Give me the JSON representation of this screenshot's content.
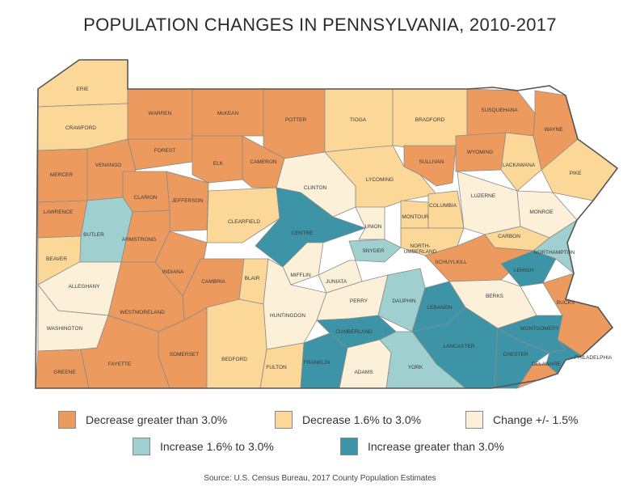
{
  "title": "POPULATION CHANGES IN PENNSYLVANIA, 2010-2017",
  "source": "Source: U.S. Census Bureau, 2017 County Population Estimates",
  "colors": {
    "decrease_gt3": "#ec9a5e",
    "decrease_16_30": "#fbd898",
    "change_15": "#fcf0d8",
    "increase_16_30": "#9fcfcf",
    "increase_gt3": "#3d94a7",
    "border": "#8a8a8a",
    "state_outline": "#555555"
  },
  "legend": [
    {
      "key": "decrease_gt3",
      "label": "Decrease greater than 3.0%"
    },
    {
      "key": "decrease_16_30",
      "label": "Decrease 1.6% to 3.0%"
    },
    {
      "key": "change_15",
      "label": "Change +/- 1.5%"
    },
    {
      "key": "increase_16_30",
      "label": "Increase 1.6% to 3.0%"
    },
    {
      "key": "increase_gt3",
      "label": "Increase greater than 3.0%"
    }
  ],
  "counties": [
    {
      "name": "ERIE",
      "category": "decrease_16_30"
    },
    {
      "name": "CRAWFORD",
      "category": "decrease_16_30"
    },
    {
      "name": "WARREN",
      "category": "decrease_gt3"
    },
    {
      "name": "McKEAN",
      "category": "decrease_gt3"
    },
    {
      "name": "POTTER",
      "category": "decrease_gt3"
    },
    {
      "name": "TIOGA",
      "category": "decrease_16_30"
    },
    {
      "name": "BRADFORD",
      "category": "decrease_16_30"
    },
    {
      "name": "SUSQUEHANA",
      "category": "decrease_gt3"
    },
    {
      "name": "WAYNE",
      "category": "decrease_gt3"
    },
    {
      "name": "MERCER",
      "category": "decrease_gt3"
    },
    {
      "name": "VENANGO",
      "category": "decrease_gt3"
    },
    {
      "name": "FOREST",
      "category": "decrease_gt3"
    },
    {
      "name": "ELK",
      "category": "decrease_gt3"
    },
    {
      "name": "CAMERON",
      "category": "decrease_gt3"
    },
    {
      "name": "CLINTON",
      "category": "change_15"
    },
    {
      "name": "LYCOMING",
      "category": "decrease_16_30"
    },
    {
      "name": "SULLIVAN",
      "category": "decrease_gt3"
    },
    {
      "name": "WYOMING",
      "category": "decrease_gt3"
    },
    {
      "name": "LACKAWANA",
      "category": "decrease_16_30"
    },
    {
      "name": "PIKE",
      "category": "decrease_16_30"
    },
    {
      "name": "LAWRENCE",
      "category": "decrease_gt3"
    },
    {
      "name": "CLARION",
      "category": "decrease_gt3"
    },
    {
      "name": "JEFFERSON",
      "category": "decrease_gt3"
    },
    {
      "name": "CLEARFIELD",
      "category": "decrease_16_30"
    },
    {
      "name": "CENTRE",
      "category": "increase_gt3"
    },
    {
      "name": "UNION",
      "category": "change_15"
    },
    {
      "name": "MONTOUR",
      "category": "decrease_16_30"
    },
    {
      "name": "COLUMBIA",
      "category": "decrease_16_30"
    },
    {
      "name": "LUZERNE",
      "category": "change_15"
    },
    {
      "name": "MONROE",
      "category": "change_15"
    },
    {
      "name": "BUTLER",
      "category": "increase_16_30"
    },
    {
      "name": "ARMSTRONG",
      "category": "decrease_gt3"
    },
    {
      "name": "INDIANA",
      "category": "decrease_gt3"
    },
    {
      "name": "SNYDER",
      "category": "increase_16_30"
    },
    {
      "name": "NORTH-UMBERLAND",
      "category": "decrease_16_30"
    },
    {
      "name": "CARBON",
      "category": "decrease_16_30"
    },
    {
      "name": "NORTHAMPTON",
      "category": "increase_16_30"
    },
    {
      "name": "BEAVER",
      "category": "decrease_16_30"
    },
    {
      "name": "ALLEGHANY",
      "category": "change_15"
    },
    {
      "name": "CAMBRIA",
      "category": "decrease_gt3"
    },
    {
      "name": "BLAIR",
      "category": "decrease_16_30"
    },
    {
      "name": "MIFFLIN",
      "category": "change_15"
    },
    {
      "name": "JUNIATA",
      "category": "change_15"
    },
    {
      "name": "SCHUYLKILL",
      "category": "decrease_gt3"
    },
    {
      "name": "LEHIGH",
      "category": "increase_gt3"
    },
    {
      "name": "WESTMORELAND",
      "category": "decrease_gt3"
    },
    {
      "name": "HUNTINGDON",
      "category": "change_15"
    },
    {
      "name": "PERRY",
      "category": "change_15"
    },
    {
      "name": "DAUPHIN",
      "category": "increase_16_30"
    },
    {
      "name": "LEBANON",
      "category": "increase_gt3"
    },
    {
      "name": "BERKS",
      "category": "change_15"
    },
    {
      "name": "BUCKS",
      "category": "decrease_gt3"
    },
    {
      "name": "WASHINGTON",
      "category": "change_15"
    },
    {
      "name": "SOMERSET",
      "category": "decrease_gt3"
    },
    {
      "name": "CUMBERLAND",
      "category": "increase_gt3"
    },
    {
      "name": "MONTGOMERY",
      "category": "increase_gt3"
    },
    {
      "name": "LANCASTER",
      "category": "increase_gt3"
    },
    {
      "name": "CHESTER",
      "category": "increase_gt3"
    },
    {
      "name": "PHILADELPHIA",
      "category": "increase_gt3"
    },
    {
      "name": "GREENE",
      "category": "decrease_gt3"
    },
    {
      "name": "FAYETTE",
      "category": "decrease_gt3"
    },
    {
      "name": "BEDFORD",
      "category": "decrease_16_30"
    },
    {
      "name": "FULTON",
      "category": "decrease_16_30"
    },
    {
      "name": "FRANKLIN",
      "category": "increase_gt3"
    },
    {
      "name": "ADAMS",
      "category": "change_15"
    },
    {
      "name": "YORK",
      "category": "increase_16_30"
    },
    {
      "name": "DELAWARE",
      "category": "decrease_gt3"
    }
  ]
}
